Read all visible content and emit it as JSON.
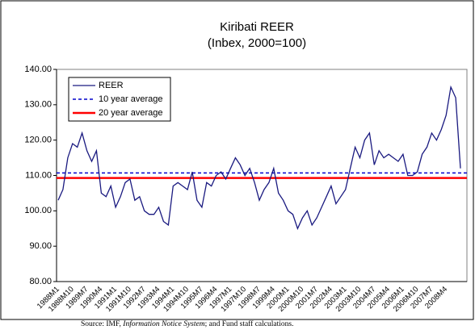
{
  "chart_data": {
    "type": "line",
    "title": "Kiribati REER",
    "subtitle": "(Inbex, 2000=100)",
    "categories": [
      "1988M1",
      null,
      null,
      "1988M10",
      null,
      null,
      "1989M7",
      null,
      null,
      "1990M4",
      null,
      null,
      "1991M1",
      null,
      null,
      "1991M10",
      null,
      null,
      "1992M7",
      null,
      null,
      "1993M4",
      null,
      null,
      "1994M1",
      null,
      null,
      "1994M10",
      null,
      null,
      "1995M7",
      null,
      null,
      "1996M4",
      null,
      null,
      "1997M1",
      null,
      null,
      "1997M10",
      null,
      null,
      "1998M7",
      null,
      null,
      "1999M4",
      null,
      null,
      "2000M1",
      null,
      null,
      "2000M10",
      null,
      null,
      "2001M7",
      null,
      null,
      "2002M4",
      null,
      null,
      "2003M1",
      null,
      null,
      "2003M10",
      null,
      null,
      "2004M7",
      null,
      null,
      "2005M4",
      null,
      null,
      "2006M1",
      null,
      null,
      "2006M10",
      null,
      null,
      "2007M7",
      null,
      null,
      "2008M4",
      null,
      null,
      null
    ],
    "series": [
      {
        "name": "REER",
        "color": "#1a1a80",
        "values": [
          103,
          106,
          115,
          119,
          118,
          122,
          117,
          114,
          117,
          105,
          104,
          107,
          101,
          104,
          108,
          109,
          103,
          104,
          100,
          99,
          99,
          101,
          97,
          96,
          107,
          108,
          107,
          106,
          111,
          103,
          101,
          108,
          107,
          110,
          111,
          109,
          112,
          115,
          113,
          110,
          112,
          108,
          103,
          106,
          108,
          112,
          105,
          103,
          100,
          99,
          95,
          98,
          100,
          96,
          98,
          101,
          104,
          107,
          102,
          104,
          106,
          112,
          118,
          115,
          120,
          122,
          113,
          117,
          115,
          116,
          115,
          114,
          116,
          110,
          110,
          111,
          116,
          118,
          122,
          120,
          123,
          127,
          135,
          132,
          112
        ]
      }
    ],
    "reference_lines": [
      {
        "name": "10 year average",
        "color": "#0000cc",
        "value": 110.7,
        "dash": true
      },
      {
        "name": "20 year average",
        "color": "#ff0000",
        "value": 109.3,
        "dash": false
      }
    ],
    "ylim": [
      80,
      140
    ],
    "yticks": [
      {
        "value": 80,
        "label": "80.00"
      },
      {
        "value": 90,
        "label": "90.00"
      },
      {
        "value": 100,
        "label": "100.00"
      },
      {
        "value": 110,
        "label": "110.00"
      },
      {
        "value": 120,
        "label": "120.00"
      },
      {
        "value": 130,
        "label": "130.00"
      },
      {
        "value": 140,
        "label": "140.00"
      }
    ],
    "legend": "upper left",
    "source": [
      "Source: IMF, ",
      "Information Notice System",
      "; and Fund staff calculations."
    ]
  }
}
